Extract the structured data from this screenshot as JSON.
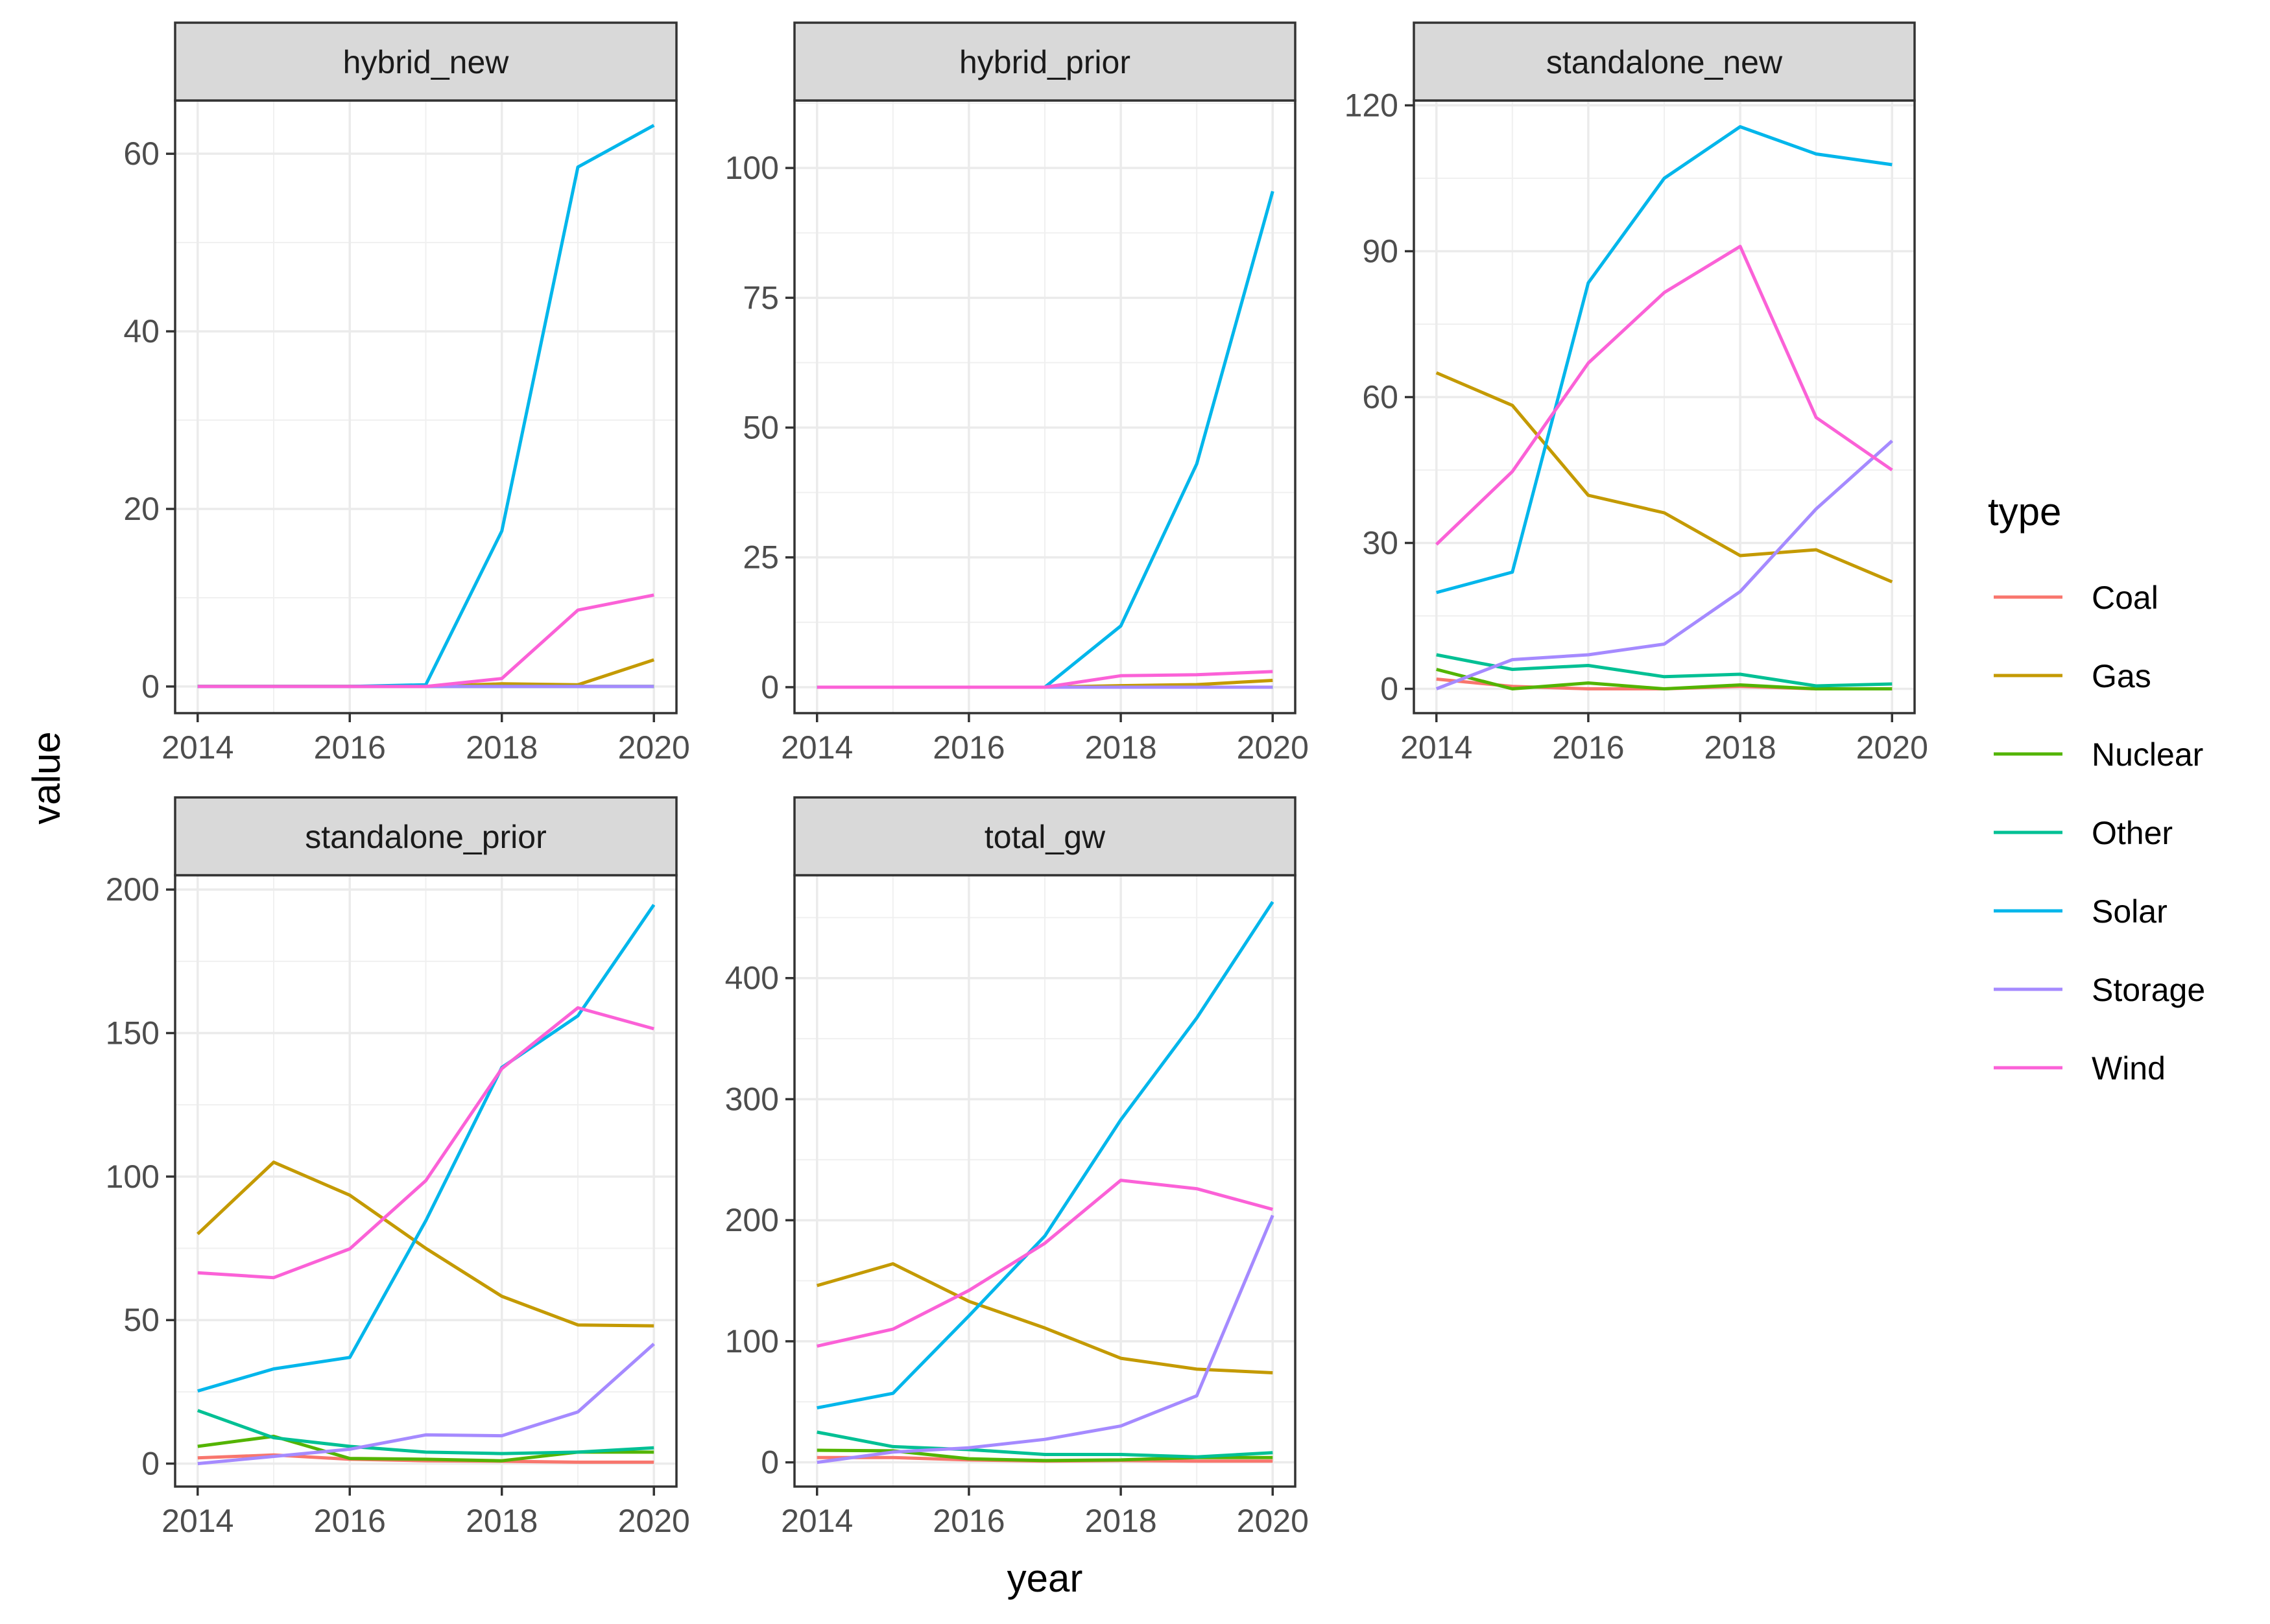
{
  "chart_data": {
    "type": "line",
    "xlabel": "year",
    "ylabel": "value",
    "x": [
      2014,
      2015,
      2016,
      2017,
      2018,
      2019,
      2020
    ],
    "xticks": [
      "2014",
      "2016",
      "2018",
      "2020"
    ],
    "xlim": [
      2014,
      2020
    ],
    "grid": true,
    "legend": {
      "title": "type",
      "placement": "right",
      "entries": [
        {
          "name": "Coal",
          "color": "#F8766D"
        },
        {
          "name": "Gas",
          "color": "#C49A00"
        },
        {
          "name": "Nuclear",
          "color": "#53B400"
        },
        {
          "name": "Other",
          "color": "#00C094"
        },
        {
          "name": "Solar",
          "color": "#00B6EB"
        },
        {
          "name": "Storage",
          "color": "#A58AFF"
        },
        {
          "name": "Wind",
          "color": "#FB61D7"
        }
      ]
    },
    "panels": [
      {
        "title": "hybrid_new",
        "ylim": [
          -3,
          66
        ],
        "yticks": [
          0,
          20,
          40,
          60
        ],
        "ytick_labels": [
          "0",
          "20",
          "40",
          "60"
        ],
        "series": [
          {
            "name": "Coal",
            "values": [
              0,
              0,
              0,
              0,
              0,
              0,
              0
            ]
          },
          {
            "name": "Gas",
            "values": [
              0,
              0,
              0,
              0,
              0.3,
              0.2,
              3.0
            ]
          },
          {
            "name": "Nuclear",
            "values": [
              0,
              0,
              0,
              0,
              0,
              0,
              0
            ]
          },
          {
            "name": "Other",
            "values": [
              0,
              0,
              0,
              0,
              0,
              0,
              0
            ]
          },
          {
            "name": "Storage",
            "values": [
              0,
              0,
              0,
              0,
              0,
              0,
              0
            ]
          },
          {
            "name": "Solar",
            "values": [
              0,
              0,
              0,
              0.2,
              17.5,
              58.5,
              63.2
            ]
          },
          {
            "name": "Wind",
            "values": [
              0,
              0,
              0,
              0,
              0.9,
              8.6,
              10.3
            ]
          }
        ]
      },
      {
        "title": "hybrid_prior",
        "ylim": [
          -5,
          113
        ],
        "yticks": [
          0,
          25,
          50,
          75,
          100
        ],
        "ytick_labels": [
          "0",
          "25",
          "50",
          "75",
          "100"
        ],
        "series": [
          {
            "name": "Coal",
            "values": [
              0,
              0,
              0,
              0,
              0,
              0,
              0
            ]
          },
          {
            "name": "Gas",
            "values": [
              0,
              0,
              0,
              0,
              0.3,
              0.5,
              1.3
            ]
          },
          {
            "name": "Nuclear",
            "values": [
              0,
              0,
              0,
              0,
              0,
              0,
              0
            ]
          },
          {
            "name": "Other",
            "values": [
              0,
              0,
              0,
              0,
              0,
              0,
              0
            ]
          },
          {
            "name": "Storage",
            "values": [
              0,
              0,
              0,
              0,
              0,
              0,
              0
            ]
          },
          {
            "name": "Solar",
            "values": [
              0,
              0,
              0,
              0,
              11.8,
              43.0,
              95.5
            ]
          },
          {
            "name": "Wind",
            "values": [
              0,
              0,
              0,
              0,
              2.2,
              2.4,
              3.0
            ]
          }
        ]
      },
      {
        "title": "standalone_new",
        "ylim": [
          -5,
          121
        ],
        "yticks": [
          0,
          30,
          60,
          90,
          120
        ],
        "ytick_labels": [
          "0",
          "30",
          "60",
          "90",
          "120"
        ],
        "series": [
          {
            "name": "Coal",
            "values": [
              2.0,
              0.5,
              0.0,
              0.0,
              0.5,
              0.0,
              0.0
            ]
          },
          {
            "name": "Gas",
            "values": [
              65.0,
              58.3,
              39.8,
              36.2,
              27.4,
              28.6,
              22.0
            ]
          },
          {
            "name": "Nuclear",
            "values": [
              4.0,
              0.0,
              1.2,
              0.0,
              0.8,
              0.0,
              0.0
            ]
          },
          {
            "name": "Other",
            "values": [
              7.0,
              4.0,
              4.8,
              2.5,
              3.0,
              0.6,
              1.0
            ]
          },
          {
            "name": "Storage",
            "values": [
              0.0,
              6.0,
              7.0,
              9.2,
              20.0,
              37.0,
              51.0
            ]
          },
          {
            "name": "Solar",
            "values": [
              19.8,
              24.0,
              83.5,
              105.0,
              115.6,
              110.0,
              107.8
            ]
          },
          {
            "name": "Wind",
            "values": [
              29.7,
              44.7,
              67.0,
              81.5,
              91.0,
              55.8,
              45.0
            ]
          }
        ]
      },
      {
        "title": "standalone_prior",
        "ylim": [
          -8,
          205
        ],
        "yticks": [
          0,
          50,
          100,
          150,
          200
        ],
        "ytick_labels": [
          "0",
          "50",
          "100",
          "150",
          "200"
        ],
        "series": [
          {
            "name": "Coal",
            "values": [
              2.0,
              3.0,
              1.5,
              1.0,
              0.8,
              0.5,
              0.5
            ]
          },
          {
            "name": "Gas",
            "values": [
              80.0,
              105.0,
              93.5,
              75.0,
              58.3,
              48.3,
              48.0
            ]
          },
          {
            "name": "Nuclear",
            "values": [
              6.0,
              9.5,
              1.8,
              1.5,
              1.0,
              4.0,
              4.0
            ]
          },
          {
            "name": "Other",
            "values": [
              18.5,
              9.0,
              6.0,
              4.0,
              3.5,
              4.0,
              5.5
            ]
          },
          {
            "name": "Storage",
            "values": [
              0.0,
              2.5,
              5.0,
              10.0,
              9.7,
              18.0,
              41.7
            ]
          },
          {
            "name": "Solar",
            "values": [
              25.3,
              33.0,
              37.0,
              84.6,
              138.0,
              156.0,
              194.7
            ]
          },
          {
            "name": "Wind",
            "values": [
              66.5,
              64.8,
              74.8,
              98.6,
              137.6,
              158.8,
              151.5
            ]
          }
        ]
      },
      {
        "title": "total_gw",
        "ylim": [
          -20,
          485
        ],
        "yticks": [
          0,
          100,
          200,
          300,
          400
        ],
        "ytick_labels": [
          "0",
          "100",
          "200",
          "300",
          "400"
        ],
        "series": [
          {
            "name": "Coal",
            "values": [
              4.0,
              4.0,
              2.0,
              1.0,
              1.5,
              1.0,
              1.0
            ]
          },
          {
            "name": "Gas",
            "values": [
              146.0,
              164.0,
              133.0,
              111.0,
              86.0,
              77.0,
              74.0
            ]
          },
          {
            "name": "Nuclear",
            "values": [
              10.0,
              9.5,
              3.0,
              1.5,
              2.0,
              4.0,
              4.0
            ]
          },
          {
            "name": "Other",
            "values": [
              25.0,
              13.0,
              10.5,
              6.5,
              6.5,
              4.5,
              8.0
            ]
          },
          {
            "name": "Storage",
            "values": [
              0.0,
              8.5,
              12.0,
              19.0,
              30.0,
              55.0,
              204.0
            ]
          },
          {
            "name": "Solar",
            "values": [
              45.0,
              57.0,
              121.0,
              187.0,
              283.0,
              367.0,
              463.0
            ]
          },
          {
            "name": "Wind",
            "values": [
              96.0,
              110.0,
              142.0,
              181.0,
              233.0,
              226.0,
              209.0
            ]
          }
        ]
      }
    ]
  }
}
